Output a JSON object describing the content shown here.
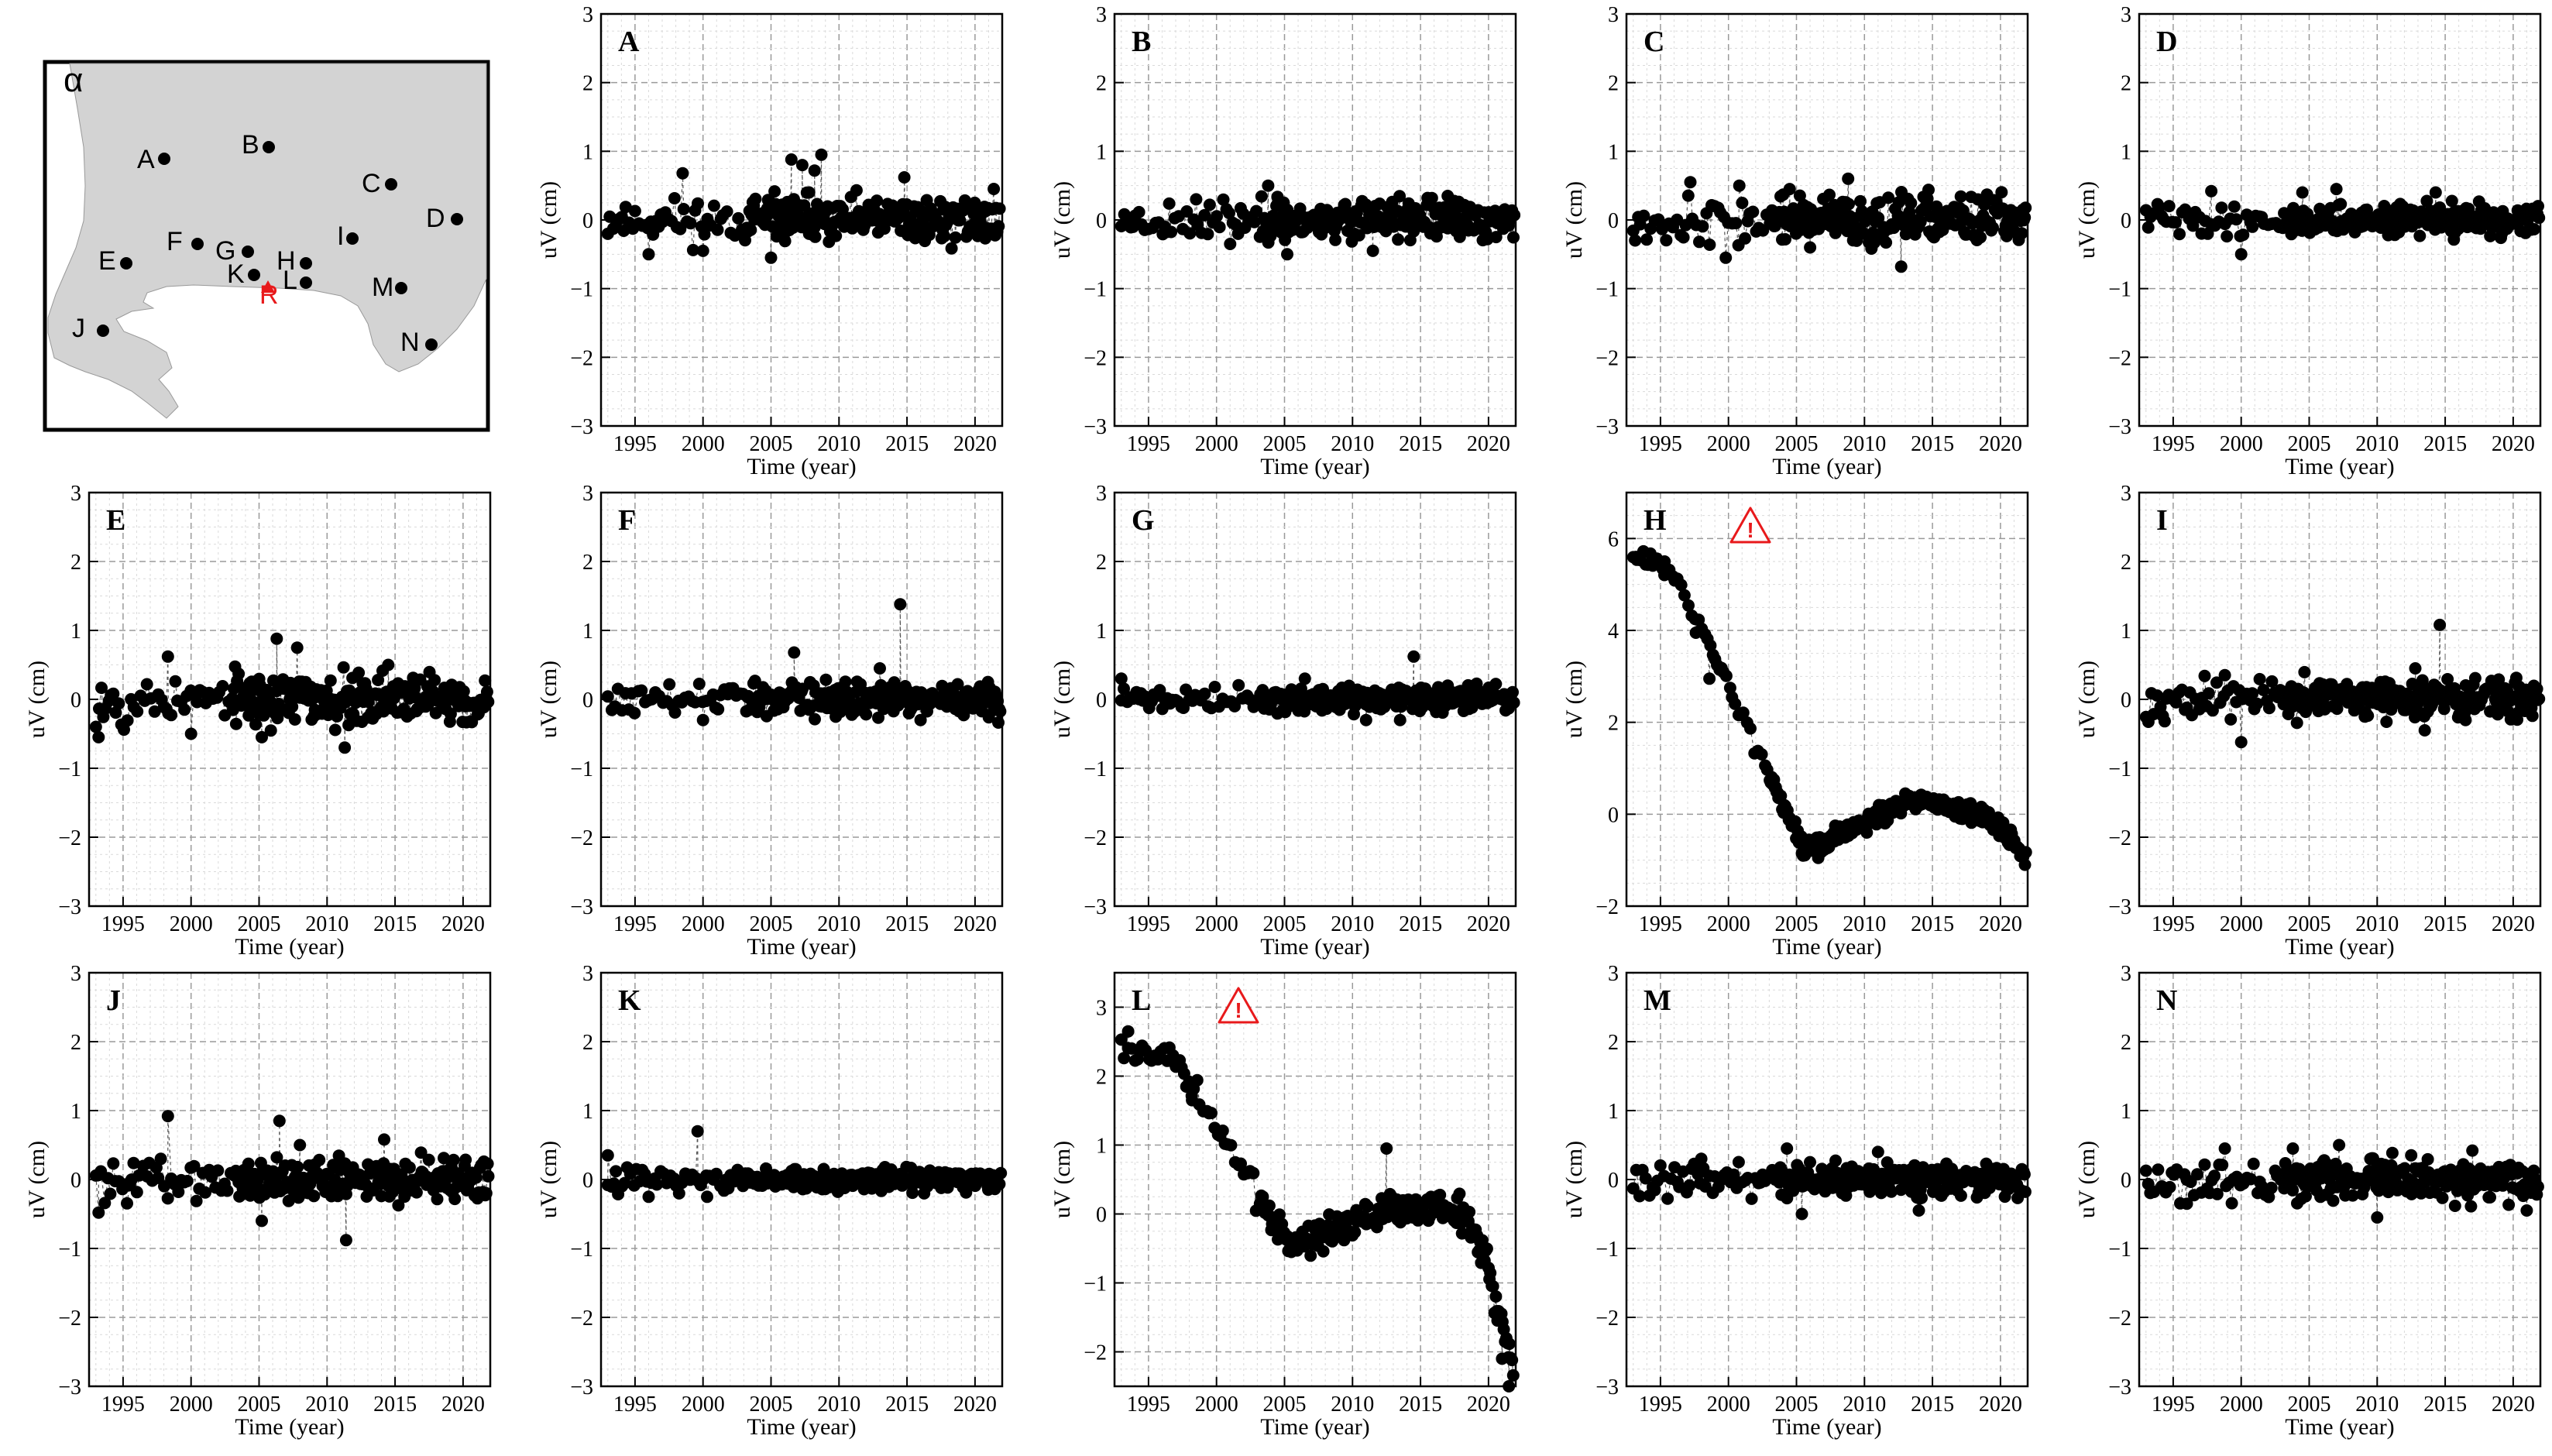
{
  "map": {
    "title": "α",
    "reference_station": "R",
    "stations": [
      "A",
      "B",
      "C",
      "D",
      "E",
      "F",
      "G",
      "H",
      "I",
      "J",
      "K",
      "L",
      "M",
      "N"
    ],
    "colors": {
      "land": "#d3d3d3",
      "frame": "#000000",
      "reference": "#e8191b"
    }
  },
  "warning_icon": "warning-triangle-icon",
  "colors": {
    "points": "#000000",
    "grid": "#c8c8c8",
    "warning": "#e8191b"
  },
  "chart_data": [
    {
      "type": "scatter",
      "panel": "A",
      "xlabel": "Time (year)",
      "ylabel": "uV (cm)",
      "xlim": [
        1992.5,
        2022
      ],
      "ylim": [
        -3,
        3
      ],
      "xticks": [
        1995,
        2000,
        2005,
        2010,
        2015,
        2020
      ],
      "yticks": [
        -3,
        -2,
        -1,
        0,
        1,
        2,
        3
      ],
      "pattern": "noise",
      "seed": 11,
      "amp": 0.16,
      "highlights": [
        [
          1998.5,
          0.68
        ],
        [
          2006.5,
          0.88
        ],
        [
          2007.3,
          0.8
        ],
        [
          2008.2,
          0.72
        ],
        [
          2008.7,
          0.95
        ],
        [
          2007.8,
          0.4
        ],
        [
          2005,
          -0.55
        ],
        [
          2014.8,
          0.62
        ],
        [
          1996,
          -0.5
        ],
        [
          2000,
          -0.45
        ]
      ]
    },
    {
      "type": "scatter",
      "panel": "B",
      "xlabel": "Time (year)",
      "ylabel": "uV (cm)",
      "xlim": [
        1992.5,
        2022
      ],
      "ylim": [
        -3,
        3
      ],
      "xticks": [
        1995,
        2000,
        2005,
        2010,
        2015,
        2020
      ],
      "yticks": [
        -3,
        -2,
        -1,
        0,
        1,
        2,
        3
      ],
      "pattern": "noise",
      "seed": 23,
      "amp": 0.14,
      "highlights": [
        [
          1998.5,
          0.3
        ],
        [
          2003.8,
          0.5
        ],
        [
          2005.2,
          -0.5
        ],
        [
          2011.5,
          -0.45
        ],
        [
          2001,
          -0.35
        ],
        [
          2017,
          0.35
        ]
      ]
    },
    {
      "type": "scatter",
      "panel": "C",
      "xlabel": "Time (year)",
      "ylabel": "uV (cm)",
      "xlim": [
        1992.5,
        2022
      ],
      "ylim": [
        -3,
        3
      ],
      "xticks": [
        1995,
        2000,
        2005,
        2010,
        2015,
        2020
      ],
      "yticks": [
        -3,
        -2,
        -1,
        0,
        1,
        2,
        3
      ],
      "pattern": "noise",
      "seed": 37,
      "amp": 0.17,
      "highlights": [
        [
          1997.2,
          0.55
        ],
        [
          2000.8,
          0.5
        ],
        [
          2008.8,
          0.6
        ],
        [
          2012.7,
          -0.68
        ],
        [
          1999.8,
          -0.55
        ],
        [
          2004.5,
          0.45
        ],
        [
          2006,
          -0.4
        ]
      ]
    },
    {
      "type": "scatter",
      "panel": "D",
      "xlabel": "Time (year)",
      "ylabel": "uV (cm)",
      "xlim": [
        1992.5,
        2022
      ],
      "ylim": [
        -3,
        3
      ],
      "xticks": [
        1995,
        2000,
        2005,
        2010,
        2015,
        2020
      ],
      "yticks": [
        -3,
        -2,
        -1,
        0,
        1,
        2,
        3
      ],
      "pattern": "noise",
      "seed": 41,
      "amp": 0.11,
      "highlights": [
        [
          1997.8,
          0.42
        ],
        [
          2000,
          -0.5
        ],
        [
          2004.5,
          0.4
        ],
        [
          2007,
          0.45
        ],
        [
          2014.3,
          0.4
        ]
      ]
    },
    {
      "type": "scatter",
      "panel": "E",
      "xlabel": "Time (year)",
      "ylabel": "uV (cm)",
      "xlim": [
        1992.5,
        2022
      ],
      "ylim": [
        -3,
        3
      ],
      "xticks": [
        1995,
        2000,
        2005,
        2010,
        2015,
        2020
      ],
      "yticks": [
        -3,
        -2,
        -1,
        0,
        1,
        2,
        3
      ],
      "pattern": "noise",
      "seed": 53,
      "amp": 0.19,
      "highlights": [
        [
          1993.2,
          -0.55
        ],
        [
          1998.3,
          0.62
        ],
        [
          2006.3,
          0.88
        ],
        [
          2007.8,
          0.75
        ],
        [
          2011.3,
          -0.7
        ],
        [
          2005.2,
          -0.55
        ],
        [
          2014.5,
          0.5
        ],
        [
          2000,
          -0.5
        ]
      ]
    },
    {
      "type": "scatter",
      "panel": "F",
      "xlabel": "Time (year)",
      "ylabel": "uV (cm)",
      "xlim": [
        1992.5,
        2022
      ],
      "ylim": [
        -3,
        3
      ],
      "xticks": [
        1995,
        2000,
        2005,
        2010,
        2015,
        2020
      ],
      "yticks": [
        -3,
        -2,
        -1,
        0,
        1,
        2,
        3
      ],
      "pattern": "noise",
      "seed": 61,
      "amp": 0.13,
      "highlights": [
        [
          2006.7,
          0.68
        ],
        [
          2014.5,
          1.38
        ],
        [
          2000,
          -0.3
        ],
        [
          2013,
          0.45
        ],
        [
          2016,
          -0.3
        ]
      ]
    },
    {
      "type": "scatter",
      "panel": "G",
      "xlabel": "Time (year)",
      "ylabel": "uV (cm)",
      "xlim": [
        1992.5,
        2022
      ],
      "ylim": [
        -3,
        3
      ],
      "xticks": [
        1995,
        2000,
        2005,
        2010,
        2015,
        2020
      ],
      "yticks": [
        -3,
        -2,
        -1,
        0,
        1,
        2,
        3
      ],
      "pattern": "noise",
      "seed": 71,
      "amp": 0.09,
      "highlights": [
        [
          2014.5,
          0.62
        ],
        [
          1993,
          0.3
        ],
        [
          2006.5,
          0.3
        ],
        [
          2011,
          -0.3
        ],
        [
          2013.5,
          -0.3
        ]
      ]
    },
    {
      "type": "scatter",
      "panel": "H",
      "xlabel": "Time (year)",
      "ylabel": "uV (cm)",
      "xlim": [
        1992.5,
        2022
      ],
      "ylim": [
        -2,
        7
      ],
      "xticks": [
        1995,
        2000,
        2005,
        2010,
        2015,
        2020
      ],
      "yticks": [
        -2,
        0,
        2,
        4,
        6
      ],
      "pattern": "subsidence-H",
      "seed": 83,
      "amp": 0.1,
      "warning": true,
      "highlights": [
        [
          1993.2,
          5.6
        ],
        [
          1995.3,
          5.5
        ],
        [
          1997.6,
          3.95
        ],
        [
          1998.6,
          2.95
        ],
        [
          2005.4,
          -0.85
        ],
        [
          2006.6,
          -0.95
        ],
        [
          2013,
          0.45
        ],
        [
          2021.8,
          -1.1
        ]
      ]
    },
    {
      "type": "scatter",
      "panel": "I",
      "xlabel": "Time (year)",
      "ylabel": "uV (cm)",
      "xlim": [
        1992.5,
        2022
      ],
      "ylim": [
        -3,
        3
      ],
      "xticks": [
        1995,
        2000,
        2005,
        2010,
        2015,
        2020
      ],
      "yticks": [
        -3,
        -2,
        -1,
        0,
        1,
        2,
        3
      ],
      "pattern": "noise",
      "seed": 97,
      "amp": 0.14,
      "highlights": [
        [
          2014.6,
          1.08
        ],
        [
          2000,
          -0.62
        ],
        [
          1998.8,
          0.35
        ],
        [
          2012.8,
          0.45
        ],
        [
          2013.5,
          -0.45
        ],
        [
          2016.5,
          -0.3
        ]
      ]
    },
    {
      "type": "scatter",
      "panel": "J",
      "xlabel": "Time (year)",
      "ylabel": "uV (cm)",
      "xlim": [
        1992.5,
        2022
      ],
      "ylim": [
        -3,
        3
      ],
      "xticks": [
        1995,
        2000,
        2005,
        2010,
        2015,
        2020
      ],
      "yticks": [
        -3,
        -2,
        -1,
        0,
        1,
        2,
        3
      ],
      "pattern": "noise",
      "seed": 101,
      "amp": 0.15,
      "highlights": [
        [
          1998.3,
          0.92
        ],
        [
          2006.5,
          0.85
        ],
        [
          2011.4,
          -0.88
        ],
        [
          1993.2,
          -0.48
        ],
        [
          2005.2,
          -0.6
        ],
        [
          2014.2,
          0.58
        ],
        [
          2008,
          0.5
        ]
      ]
    },
    {
      "type": "scatter",
      "panel": "K",
      "xlabel": "Time (year)",
      "ylabel": "uV (cm)",
      "xlim": [
        1992.5,
        2022
      ],
      "ylim": [
        -3,
        3
      ],
      "xticks": [
        1995,
        2000,
        2005,
        2010,
        2015,
        2020
      ],
      "yticks": [
        -3,
        -2,
        -1,
        0,
        1,
        2,
        3
      ],
      "pattern": "noise",
      "seed": 113,
      "amp": 0.08,
      "highlights": [
        [
          1999.6,
          0.7
        ],
        [
          1993,
          0.35
        ],
        [
          1996,
          -0.25
        ],
        [
          2000.3,
          -0.25
        ]
      ]
    },
    {
      "type": "scatter",
      "panel": "L",
      "xlabel": "Time (year)",
      "ylabel": "uV (cm)",
      "xlim": [
        1992.5,
        2022
      ],
      "ylim": [
        -2.5,
        3.5
      ],
      "xticks": [
        1995,
        2000,
        2005,
        2010,
        2015,
        2020
      ],
      "yticks": [
        -2,
        -1,
        0,
        1,
        2,
        3
      ],
      "pattern": "subsidence-L",
      "seed": 127,
      "amp": 0.11,
      "warning": true,
      "highlights": [
        [
          1993.5,
          2.65
        ],
        [
          1996.8,
          2.3
        ],
        [
          1998.2,
          1.65
        ],
        [
          2005.5,
          -0.55
        ],
        [
          2012.5,
          0.95
        ],
        [
          2021.5,
          -2.5
        ],
        [
          2021,
          -2.1
        ]
      ]
    },
    {
      "type": "scatter",
      "panel": "M",
      "xlabel": "Time (year)",
      "ylabel": "uV (cm)",
      "xlim": [
        1992.5,
        2022
      ],
      "ylim": [
        -3,
        3
      ],
      "xticks": [
        1995,
        2000,
        2005,
        2010,
        2015,
        2020
      ],
      "yticks": [
        -3,
        -2,
        -1,
        0,
        1,
        2,
        3
      ],
      "pattern": "noise",
      "seed": 131,
      "amp": 0.12,
      "highlights": [
        [
          2004.3,
          0.45
        ],
        [
          2005.4,
          -0.5
        ],
        [
          2011,
          0.4
        ],
        [
          2014,
          -0.45
        ],
        [
          1998,
          0.3
        ]
      ]
    },
    {
      "type": "scatter",
      "panel": "N",
      "xlabel": "Time (year)",
      "ylabel": "uV (cm)",
      "xlim": [
        1992.5,
        2022
      ],
      "ylim": [
        -3,
        3
      ],
      "xticks": [
        1995,
        2000,
        2005,
        2010,
        2015,
        2020
      ],
      "yticks": [
        -3,
        -2,
        -1,
        0,
        1,
        2,
        3
      ],
      "pattern": "noise",
      "seed": 149,
      "amp": 0.15,
      "highlights": [
        [
          1998.8,
          0.45
        ],
        [
          2003.8,
          0.45
        ],
        [
          2007.2,
          0.5
        ],
        [
          2010,
          -0.55
        ],
        [
          2012.5,
          0.35
        ],
        [
          2017,
          0.42
        ],
        [
          2021,
          -0.45
        ],
        [
          1996,
          -0.35
        ]
      ]
    }
  ]
}
